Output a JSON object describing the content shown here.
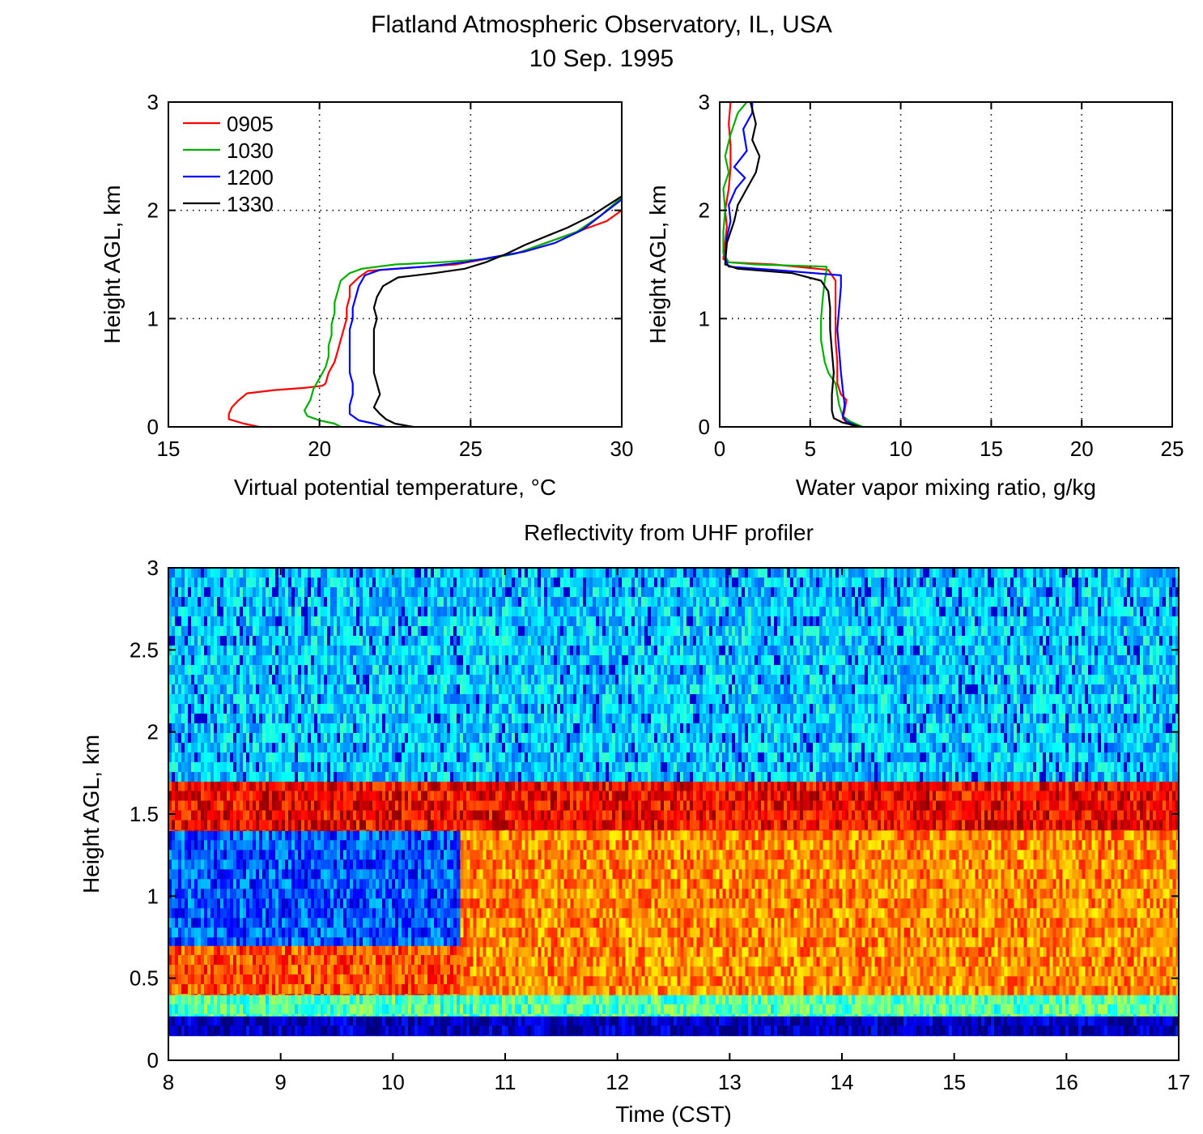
{
  "figure": {
    "title_line1": "Flatland Atmospheric Observatory, IL, USA",
    "title_line2": "10 Sep. 1995"
  },
  "chart_data": [
    {
      "type": "line",
      "xlabel": "Virtual potential temperature, °C",
      "ylabel": "Height AGL, km",
      "xlim": [
        15,
        30
      ],
      "ylim": [
        0,
        3
      ],
      "xticks": [
        "15",
        "20",
        "25",
        "30"
      ],
      "yticks": [
        "0",
        "1",
        "2",
        "3"
      ],
      "grid": true,
      "legend_position": "top-left",
      "series": [
        {
          "name": "0905",
          "color": "#ff0000",
          "points": [
            [
              18.0,
              0.0
            ],
            [
              17.5,
              0.03
            ],
            [
              17.0,
              0.07
            ],
            [
              17.0,
              0.12
            ],
            [
              17.1,
              0.18
            ],
            [
              17.3,
              0.24
            ],
            [
              17.6,
              0.31
            ],
            [
              18.5,
              0.34
            ],
            [
              19.5,
              0.36
            ],
            [
              20.1,
              0.38
            ],
            [
              20.2,
              0.4
            ],
            [
              20.3,
              0.5
            ],
            [
              20.5,
              0.6
            ],
            [
              20.6,
              0.7
            ],
            [
              20.7,
              0.8
            ],
            [
              20.8,
              0.9
            ],
            [
              20.9,
              1.0
            ],
            [
              20.9,
              1.1
            ],
            [
              21.0,
              1.2
            ],
            [
              21.0,
              1.3
            ],
            [
              21.3,
              1.38
            ],
            [
              21.6,
              1.44
            ],
            [
              23.0,
              1.47
            ],
            [
              24.5,
              1.5
            ],
            [
              25.5,
              1.55
            ],
            [
              26.5,
              1.6
            ],
            [
              27.5,
              1.7
            ],
            [
              28.5,
              1.8
            ],
            [
              29.5,
              1.9
            ],
            [
              30.0,
              2.0
            ]
          ]
        },
        {
          "name": "1030",
          "color": "#00b000",
          "points": [
            [
              20.7,
              0.0
            ],
            [
              20.5,
              0.03
            ],
            [
              20.0,
              0.06
            ],
            [
              19.6,
              0.1
            ],
            [
              19.5,
              0.15
            ],
            [
              19.6,
              0.2
            ],
            [
              19.7,
              0.25
            ],
            [
              19.8,
              0.35
            ],
            [
              20.0,
              0.45
            ],
            [
              20.2,
              0.55
            ],
            [
              20.3,
              0.65
            ],
            [
              20.3,
              0.75
            ],
            [
              20.4,
              0.85
            ],
            [
              20.4,
              0.95
            ],
            [
              20.5,
              1.05
            ],
            [
              20.5,
              1.15
            ],
            [
              20.6,
              1.25
            ],
            [
              20.7,
              1.35
            ],
            [
              21.0,
              1.42
            ],
            [
              21.4,
              1.46
            ],
            [
              22.5,
              1.5
            ],
            [
              24.0,
              1.52
            ],
            [
              25.5,
              1.55
            ],
            [
              26.5,
              1.6
            ],
            [
              27.5,
              1.7
            ],
            [
              28.5,
              1.8
            ],
            [
              29.3,
              1.95
            ],
            [
              30.0,
              2.12
            ]
          ]
        },
        {
          "name": "1200",
          "color": "#0000ff",
          "points": [
            [
              22.2,
              0.0
            ],
            [
              21.8,
              0.03
            ],
            [
              21.3,
              0.06
            ],
            [
              21.0,
              0.12
            ],
            [
              21.0,
              0.2
            ],
            [
              21.1,
              0.3
            ],
            [
              21.1,
              0.4
            ],
            [
              21.0,
              0.5
            ],
            [
              21.0,
              0.6
            ],
            [
              21.0,
              0.7
            ],
            [
              21.0,
              0.8
            ],
            [
              21.0,
              0.9
            ],
            [
              21.1,
              1.0
            ],
            [
              21.1,
              1.1
            ],
            [
              21.2,
              1.2
            ],
            [
              21.3,
              1.3
            ],
            [
              21.5,
              1.4
            ],
            [
              22.0,
              1.45
            ],
            [
              23.5,
              1.48
            ],
            [
              24.8,
              1.52
            ],
            [
              25.8,
              1.57
            ],
            [
              26.8,
              1.62
            ],
            [
              27.8,
              1.7
            ],
            [
              28.7,
              1.82
            ],
            [
              29.3,
              1.95
            ],
            [
              30.0,
              2.1
            ]
          ]
        },
        {
          "name": "1330",
          "color": "#000000",
          "points": [
            [
              23.1,
              0.0
            ],
            [
              22.5,
              0.03
            ],
            [
              22.2,
              0.07
            ],
            [
              22.0,
              0.12
            ],
            [
              21.8,
              0.18
            ],
            [
              21.9,
              0.24
            ],
            [
              22.0,
              0.3
            ],
            [
              21.9,
              0.4
            ],
            [
              21.8,
              0.5
            ],
            [
              21.8,
              0.6
            ],
            [
              21.8,
              0.7
            ],
            [
              21.8,
              0.8
            ],
            [
              21.8,
              0.9
            ],
            [
              21.9,
              1.0
            ],
            [
              21.8,
              1.1
            ],
            [
              21.9,
              1.2
            ],
            [
              22.1,
              1.3
            ],
            [
              22.6,
              1.38
            ],
            [
              23.8,
              1.42
            ],
            [
              24.8,
              1.46
            ],
            [
              25.5,
              1.52
            ],
            [
              26.2,
              1.6
            ],
            [
              26.8,
              1.68
            ],
            [
              27.5,
              1.76
            ],
            [
              28.2,
              1.84
            ],
            [
              29.0,
              1.95
            ],
            [
              30.0,
              2.13
            ]
          ]
        }
      ]
    },
    {
      "type": "line",
      "xlabel": "Water vapor mixing ratio, g/kg",
      "ylabel": "Height AGL, km",
      "xlim": [
        0,
        25
      ],
      "ylim": [
        0,
        3
      ],
      "xticks": [
        "0",
        "5",
        "10",
        "15",
        "20",
        "25"
      ],
      "yticks": [
        "0",
        "1",
        "2",
        "3"
      ],
      "grid": true,
      "series": [
        {
          "name": "0905",
          "color": "#ff0000",
          "points": [
            [
              7.5,
              0.0
            ],
            [
              7.0,
              0.04
            ],
            [
              6.8,
              0.08
            ],
            [
              6.9,
              0.15
            ],
            [
              7.0,
              0.25
            ],
            [
              6.7,
              0.3
            ],
            [
              6.5,
              0.4
            ],
            [
              6.5,
              0.6
            ],
            [
              6.4,
              0.8
            ],
            [
              6.4,
              1.0
            ],
            [
              6.4,
              1.2
            ],
            [
              6.4,
              1.35
            ],
            [
              6.0,
              1.45
            ],
            [
              3.0,
              1.5
            ],
            [
              0.5,
              1.52
            ],
            [
              0.2,
              1.55
            ],
            [
              0.3,
              1.7
            ],
            [
              0.4,
              1.85
            ],
            [
              0.3,
              2.0
            ],
            [
              0.5,
              2.2
            ],
            [
              0.6,
              2.4
            ],
            [
              0.6,
              2.6
            ],
            [
              0.5,
              2.8
            ],
            [
              0.6,
              3.0
            ]
          ]
        },
        {
          "name": "1030",
          "color": "#00b000",
          "points": [
            [
              7.9,
              0.0
            ],
            [
              7.2,
              0.05
            ],
            [
              6.8,
              0.1
            ],
            [
              6.6,
              0.2
            ],
            [
              6.4,
              0.4
            ],
            [
              6.0,
              0.5
            ],
            [
              5.8,
              0.6
            ],
            [
              5.7,
              0.7
            ],
            [
              5.6,
              0.8
            ],
            [
              5.6,
              1.0
            ],
            [
              5.7,
              1.2
            ],
            [
              5.8,
              1.35
            ],
            [
              5.9,
              1.44
            ],
            [
              5.9,
              1.48
            ],
            [
              2.0,
              1.5
            ],
            [
              0.5,
              1.52
            ],
            [
              0.2,
              1.6
            ],
            [
              0.2,
              1.8
            ],
            [
              0.3,
              2.0
            ],
            [
              0.2,
              2.2
            ],
            [
              0.5,
              2.35
            ],
            [
              0.3,
              2.5
            ],
            [
              0.6,
              2.7
            ],
            [
              1.0,
              2.9
            ],
            [
              1.5,
              3.0
            ]
          ]
        },
        {
          "name": "1200",
          "color": "#0000ff",
          "points": [
            [
              7.7,
              0.0
            ],
            [
              7.0,
              0.05
            ],
            [
              6.8,
              0.1
            ],
            [
              6.9,
              0.2
            ],
            [
              6.8,
              0.35
            ],
            [
              6.7,
              0.5
            ],
            [
              6.6,
              0.7
            ],
            [
              6.5,
              0.9
            ],
            [
              6.6,
              1.1
            ],
            [
              6.7,
              1.3
            ],
            [
              6.7,
              1.4
            ],
            [
              3.0,
              1.45
            ],
            [
              0.5,
              1.48
            ],
            [
              0.3,
              1.55
            ],
            [
              0.4,
              1.75
            ],
            [
              0.6,
              1.9
            ],
            [
              0.5,
              2.05
            ],
            [
              0.9,
              2.2
            ],
            [
              1.4,
              2.3
            ],
            [
              0.8,
              2.4
            ],
            [
              1.5,
              2.55
            ],
            [
              1.3,
              2.75
            ],
            [
              1.8,
              2.9
            ],
            [
              1.8,
              3.0
            ]
          ]
        },
        {
          "name": "1330",
          "color": "#000000",
          "points": [
            [
              7.8,
              0.0
            ],
            [
              6.8,
              0.04
            ],
            [
              6.3,
              0.08
            ],
            [
              6.2,
              0.15
            ],
            [
              6.2,
              0.3
            ],
            [
              6.3,
              0.5
            ],
            [
              6.2,
              0.7
            ],
            [
              6.1,
              0.9
            ],
            [
              6.1,
              1.1
            ],
            [
              6.0,
              1.25
            ],
            [
              5.6,
              1.35
            ],
            [
              4.0,
              1.42
            ],
            [
              1.0,
              1.46
            ],
            [
              0.3,
              1.5
            ],
            [
              0.4,
              1.7
            ],
            [
              0.8,
              1.9
            ],
            [
              1.0,
              2.05
            ],
            [
              1.5,
              2.2
            ],
            [
              2.0,
              2.35
            ],
            [
              2.2,
              2.5
            ],
            [
              1.8,
              2.65
            ],
            [
              2.0,
              2.8
            ],
            [
              1.7,
              3.0
            ]
          ]
        }
      ]
    },
    {
      "type": "heatmap",
      "title": "Reflectivity from UHF profiler",
      "xlabel": "Time (CST)",
      "ylabel": "Height AGL, km",
      "xlim": [
        8,
        17
      ],
      "ylim": [
        0,
        3
      ],
      "xticks": [
        "8",
        "9",
        "10",
        "11",
        "12",
        "13",
        "14",
        "15",
        "16",
        "17"
      ],
      "yticks": [
        "0",
        "0.5",
        "1",
        "1.5",
        "2",
        "2.5",
        "3"
      ],
      "colormap": "jet",
      "levels": [
        {
          "x_range": [
            8,
            17
          ],
          "y_range": [
            0.15,
            0.27
          ],
          "level": 0.05
        },
        {
          "x_range": [
            8,
            17
          ],
          "y_range": [
            0.27,
            0.4
          ],
          "level": 0.45
        },
        {
          "x_range": [
            8,
            10.6
          ],
          "y_range": [
            0.4,
            0.7
          ],
          "level": 0.8
        },
        {
          "x_range": [
            8,
            10.6
          ],
          "y_range": [
            0.7,
            1.4
          ],
          "level": 0.22
        },
        {
          "x_range": [
            8,
            17
          ],
          "y_range": [
            1.4,
            1.7
          ],
          "level": 0.88
        },
        {
          "x_range": [
            10.6,
            17
          ],
          "y_range": [
            0.4,
            1.4
          ],
          "level": 0.74
        },
        {
          "x_range": [
            8,
            17
          ],
          "y_range": [
            1.7,
            3.0
          ],
          "level": 0.33
        }
      ]
    }
  ]
}
